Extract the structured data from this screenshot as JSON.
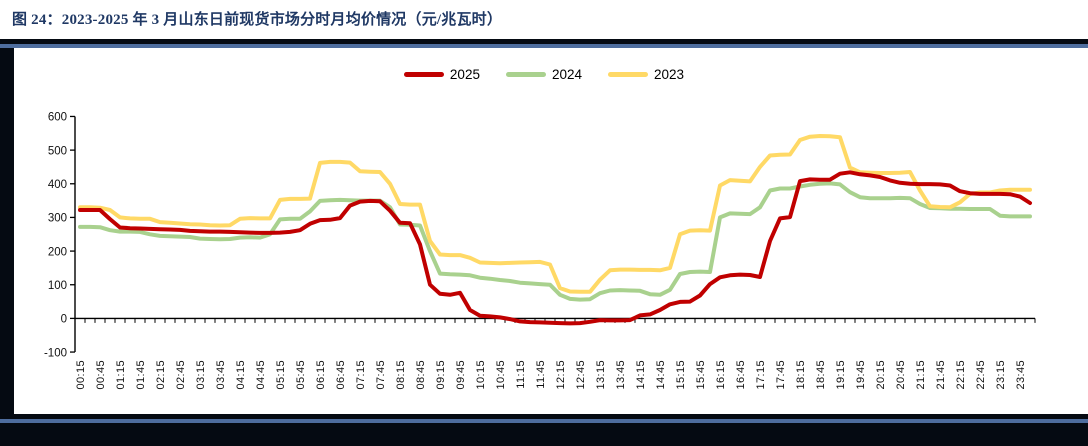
{
  "chart_data": {
    "type": "line",
    "title": "图 24：2023-2025 年 3 月山东日前现货市场分时月均价情况（元/兆瓦时）",
    "unit": "元/兆瓦时",
    "x_start": "00:15",
    "x_interval_minutes": 15,
    "x_tick_labels": [
      "00:15",
      "00:45",
      "01:15",
      "01:45",
      "02:15",
      "02:45",
      "03:15",
      "03:45",
      "04:15",
      "04:45",
      "05:15",
      "05:45",
      "06:15",
      "06:45",
      "07:15",
      "07:45",
      "08:15",
      "08:45",
      "09:15",
      "09:45",
      "10:15",
      "10:45",
      "11:15",
      "11:45",
      "12:15",
      "12:45",
      "13:15",
      "13:45",
      "14:15",
      "14:45",
      "15:15",
      "15:45",
      "16:15",
      "16:45",
      "17:15",
      "17:45",
      "18:15",
      "18:45",
      "19:15",
      "19:45",
      "20:15",
      "20:45",
      "21:15",
      "21:45",
      "22:15",
      "22:45",
      "23:15",
      "23:45"
    ],
    "y_ticks": [
      -100,
      0,
      100,
      200,
      300,
      400,
      500,
      600
    ],
    "ylim": [
      -100,
      600
    ],
    "grid": false,
    "legend_position": "top-center",
    "series": [
      {
        "name": "2025",
        "color": "#c00000",
        "values": [
          322,
          322,
          322,
          295,
          270,
          268,
          267,
          266,
          265,
          264,
          263,
          260,
          259,
          258,
          258,
          257,
          256,
          255,
          254,
          254,
          255,
          257,
          262,
          281,
          292,
          293,
          298,
          335,
          347,
          349,
          348,
          320,
          284,
          283,
          220,
          100,
          73,
          70,
          76,
          25,
          8,
          6,
          3,
          -2,
          -9,
          -11,
          -12,
          -13,
          -14,
          -15,
          -14,
          -10,
          -5,
          -6,
          -6,
          -5,
          9,
          12,
          25,
          42,
          49,
          50,
          68,
          102,
          122,
          128,
          130,
          129,
          123,
          230,
          297,
          301,
          408,
          413,
          412,
          412,
          430,
          434,
          428,
          425,
          420,
          410,
          403,
          400,
          399,
          399,
          398,
          395,
          378,
          372,
          370,
          370,
          370,
          369,
          362,
          343
        ]
      },
      {
        "name": "2024",
        "color": "#a9d18e",
        "values": [
          272,
          272,
          271,
          262,
          258,
          258,
          257,
          250,
          245,
          244,
          243,
          242,
          237,
          236,
          235,
          236,
          240,
          241,
          240,
          250,
          294,
          296,
          296,
          318,
          349,
          351,
          352,
          351,
          350,
          350,
          350,
          330,
          279,
          278,
          276,
          200,
          133,
          131,
          130,
          128,
          121,
          118,
          114,
          111,
          106,
          104,
          102,
          100,
          70,
          58,
          56,
          57,
          75,
          83,
          84,
          83,
          82,
          72,
          70,
          85,
          132,
          138,
          139,
          138,
          300,
          312,
          311,
          310,
          330,
          380,
          386,
          386,
          392,
          397,
          400,
          401,
          398,
          375,
          360,
          357,
          357,
          357,
          358,
          357,
          340,
          328,
          327,
          326,
          326,
          325,
          325,
          325,
          305,
          303,
          303,
          303
        ]
      },
      {
        "name": "2023",
        "color": "#ffd966",
        "values": [
          330,
          330,
          329,
          322,
          300,
          297,
          296,
          296,
          286,
          284,
          282,
          280,
          279,
          277,
          276,
          277,
          296,
          298,
          297,
          297,
          352,
          355,
          355,
          356,
          462,
          465,
          465,
          463,
          437,
          436,
          435,
          400,
          340,
          338,
          338,
          230,
          190,
          188,
          188,
          180,
          166,
          165,
          164,
          165,
          166,
          167,
          168,
          160,
          90,
          80,
          79,
          79,
          115,
          143,
          145,
          145,
          144,
          144,
          143,
          150,
          250,
          261,
          262,
          261,
          395,
          411,
          409,
          407,
          450,
          484,
          486,
          487,
          530,
          540,
          542,
          541,
          538,
          448,
          434,
          433,
          432,
          432,
          433,
          435,
          380,
          333,
          331,
          330,
          345,
          370,
          374,
          374,
          380,
          382,
          382,
          382
        ]
      }
    ]
  },
  "colors": {
    "title": "#1f3864",
    "divider_dark": "#050a12",
    "divider_blue": "#4e6d9e",
    "axis": "#000000"
  }
}
